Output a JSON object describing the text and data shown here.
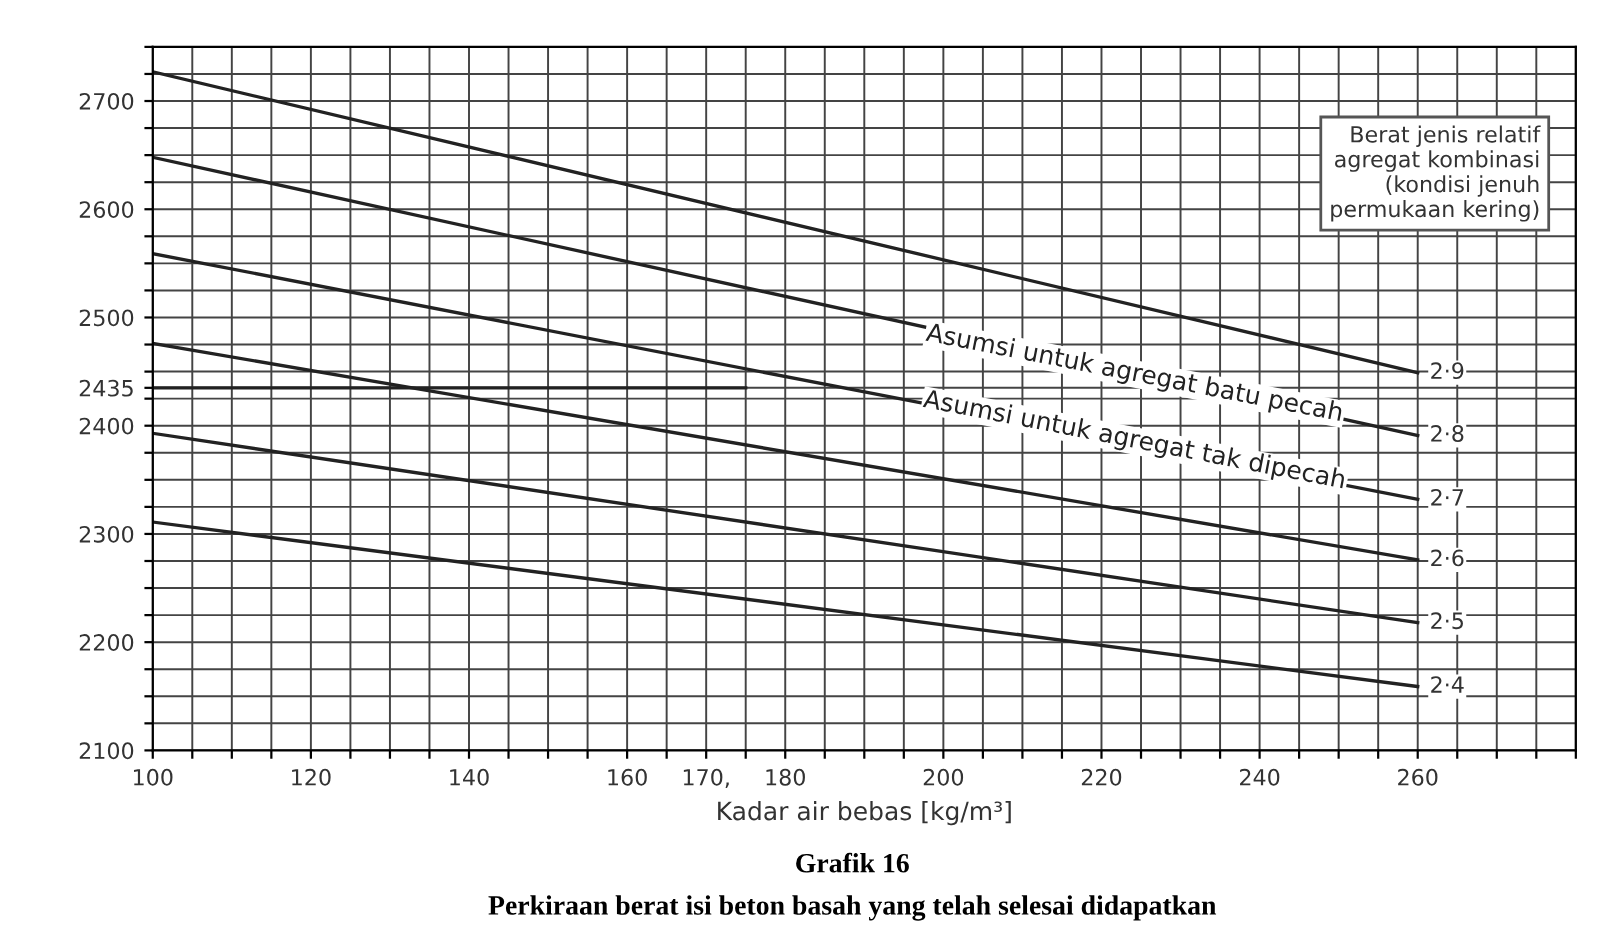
{
  "chart_data": {
    "type": "line",
    "title": "Grafik 16",
    "subtitle": "Perkiraan berat isi beton basah yang telah selesai didapatkan",
    "xlabel": "Kadar air bebas [kg/m³]",
    "x": [
      100,
      260
    ],
    "series": [
      {
        "name": "2·9",
        "color": "#222222",
        "values": [
          2727,
          2449
        ]
      },
      {
        "name": "2·8",
        "color": "#222222",
        "values": [
          2648,
          2391
        ]
      },
      {
        "name": "2·7",
        "color": "#222222",
        "values": [
          2559,
          2332
        ]
      },
      {
        "name": "2·6",
        "color": "#222222",
        "values": [
          2476,
          2276
        ]
      },
      {
        "name": "2·5",
        "color": "#222222",
        "values": [
          2393,
          2218
        ]
      },
      {
        "name": "2·4",
        "color": "#222222",
        "values": [
          2311,
          2159
        ]
      },
      {
        "color": "#222222",
        "x": [
          100,
          175
        ],
        "values": [
          2435,
          2435
        ]
      }
    ],
    "xlim": [
      100,
      280
    ],
    "xticks": [
      {
        "value": 100,
        "label": "100"
      },
      {
        "value": 105,
        "label": null
      },
      {
        "value": 110,
        "label": null
      },
      {
        "value": 115,
        "label": null
      },
      {
        "value": 120,
        "label": "120"
      },
      {
        "value": 125,
        "label": null
      },
      {
        "value": 130,
        "label": null
      },
      {
        "value": 135,
        "label": null
      },
      {
        "value": 140,
        "label": "140"
      },
      {
        "value": 145,
        "label": null
      },
      {
        "value": 150,
        "label": null
      },
      {
        "value": 155,
        "label": null
      },
      {
        "value": 160,
        "label": "160"
      },
      {
        "value": 165,
        "label": null
      },
      {
        "value": 170,
        "label": "170,"
      },
      {
        "value": 175,
        "label": null
      },
      {
        "value": 180,
        "label": "180"
      },
      {
        "value": 185,
        "label": null
      },
      {
        "value": 190,
        "label": null
      },
      {
        "value": 195,
        "label": null
      },
      {
        "value": 200,
        "label": "200"
      },
      {
        "value": 205,
        "label": null
      },
      {
        "value": 210,
        "label": null
      },
      {
        "value": 215,
        "label": null
      },
      {
        "value": 220,
        "label": "220"
      },
      {
        "value": 225,
        "label": null
      },
      {
        "value": 230,
        "label": null
      },
      {
        "value": 235,
        "label": null
      },
      {
        "value": 240,
        "label": "240"
      },
      {
        "value": 245,
        "label": null
      },
      {
        "value": 250,
        "label": null
      },
      {
        "value": 255,
        "label": null
      },
      {
        "value": 260,
        "label": "260"
      },
      {
        "value": 265,
        "label": null
      },
      {
        "value": 270,
        "label": null
      },
      {
        "value": 275,
        "label": null
      },
      {
        "value": 280,
        "label": null
      }
    ],
    "ylim": [
      2100,
      2750
    ],
    "yticks": [
      2100,
      {
        "value": 2125,
        "label": null
      },
      {
        "value": 2150,
        "label": null
      },
      {
        "value": 2175,
        "label": null
      },
      2200,
      {
        "value": 2225,
        "label": null
      },
      {
        "value": 2250,
        "label": null
      },
      {
        "value": 2275,
        "label": null
      },
      2300,
      {
        "value": 2325,
        "label": null
      },
      {
        "value": 2350,
        "label": null
      },
      {
        "value": 2375,
        "label": null
      },
      2400,
      {
        "value": 2425,
        "label": null
      },
      2435,
      {
        "value": 2450,
        "label": null
      },
      {
        "value": 2475,
        "label": null
      },
      2500,
      {
        "value": 2525,
        "label": null
      },
      {
        "value": 2550,
        "label": null
      },
      {
        "value": 2575,
        "label": null
      },
      2600,
      {
        "value": 2625,
        "label": null
      },
      {
        "value": 2650,
        "label": null
      },
      {
        "value": 2675,
        "label": null
      },
      2700,
      {
        "value": 2725,
        "label": null
      },
      {
        "value": 2750,
        "label": null
      }
    ],
    "grid": true,
    "annotations": [
      "Asumsi untuk agregat batu pecah",
      "Asumsi untuk agregat tak dipecah",
      "Berat jenis relatif\nagregat kombinasi\n(kondisi jenuh\npermukaan kering)"
    ]
  }
}
